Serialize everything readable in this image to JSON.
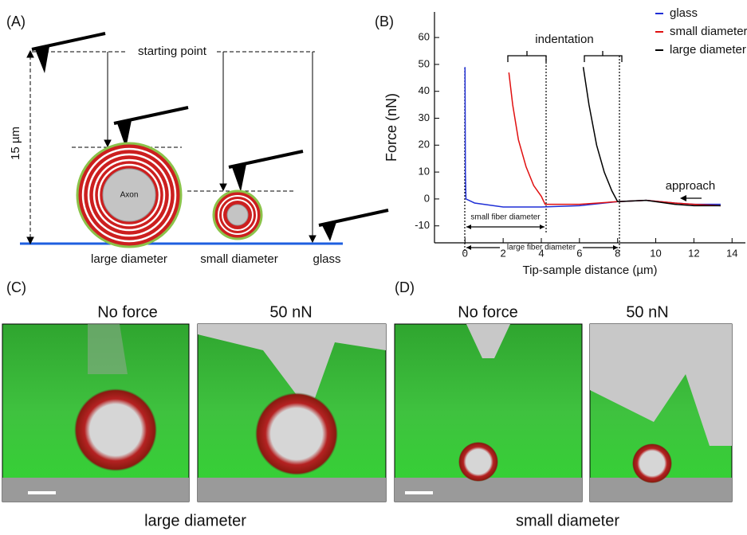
{
  "panel_a": {
    "label": "(A)",
    "starting_point": "starting point",
    "height": "15 µm",
    "axon": "Axon",
    "labels": [
      "large diameter",
      "small diameter",
      "glass"
    ]
  },
  "chart_data": {
    "type": "line",
    "panel_label": "(B)",
    "xlabel": "Tip-sample distance (µm)",
    "ylabel": "Force (nN)",
    "xlim": [
      -1.6,
      14.7
    ],
    "ylim": [
      -16.3,
      69.5
    ],
    "xticks": [
      0,
      2,
      4,
      6,
      8,
      10,
      12,
      14
    ],
    "yticks": [
      -10,
      0,
      10,
      20,
      30,
      40,
      50,
      60
    ],
    "grid": false,
    "legend": "upper right",
    "series": [
      {
        "name": "glass",
        "color": "#1f2fd6",
        "x": [
          0,
          0.02,
          0.05,
          0.5,
          2,
          4,
          6,
          8,
          9.5,
          11,
          12,
          13.4
        ],
        "values": [
          49,
          10,
          0,
          -1.5,
          -3,
          -3,
          -2.5,
          -1,
          -0.5,
          -1.5,
          -2,
          -2
        ]
      },
      {
        "name": "small diameter",
        "color": "#e01010",
        "x": [
          2.3,
          2.5,
          2.8,
          3.2,
          3.6,
          4.0,
          4.2,
          6,
          8,
          9.5,
          11,
          12,
          13.4
        ],
        "values": [
          47,
          35,
          22,
          12,
          5,
          1,
          -2,
          -2,
          -1,
          -0.5,
          -1.5,
          -2,
          -2.5
        ]
      },
      {
        "name": "large diameter",
        "color": "#000000",
        "x": [
          6.2,
          6.5,
          6.9,
          7.3,
          7.7,
          8.0,
          9.5,
          11,
          12,
          13.4
        ],
        "values": [
          49,
          35,
          20,
          10,
          3,
          -1,
          -0.5,
          -2,
          -2.5,
          -2.5
        ]
      }
    ],
    "annotations": [
      "indentation",
      "approach",
      "small fiber diameter",
      "large fiber diameter"
    ]
  },
  "panel_c": {
    "label": "(C)",
    "images": [
      "No force",
      "50 nN"
    ],
    "caption": "large diameter"
  },
  "panel_d": {
    "label": "(D)",
    "images": [
      "No force",
      "50 nN"
    ],
    "caption": "small diameter"
  }
}
